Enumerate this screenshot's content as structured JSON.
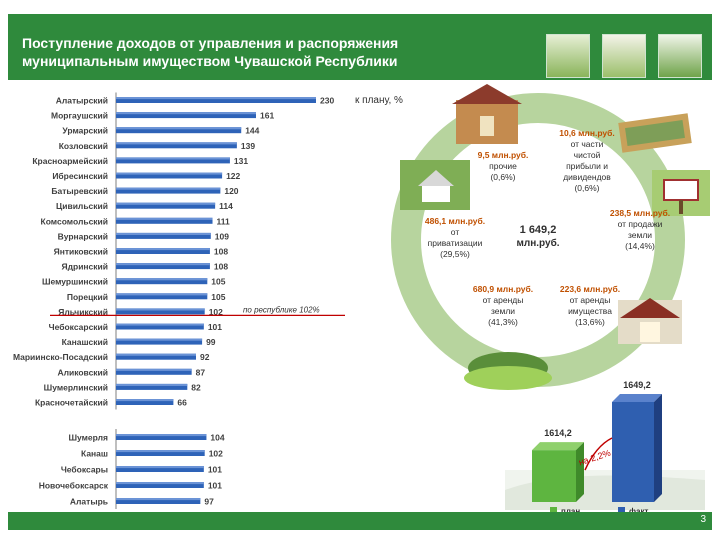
{
  "header": {
    "title": "Поступление доходов от управления и распоряжения муниципальным имуществом Чувашской Республики"
  },
  "page_number": "3",
  "colors": {
    "header": "#2f8a3c",
    "bar": "#2e63b8",
    "plan": "#5eb540",
    "fact": "#2f5fb0",
    "cycle": "#b7d49e"
  },
  "chart_data": [
    {
      "type": "bar",
      "orientation": "horizontal",
      "categories": [
        "Алатырский",
        "Моргаушский",
        "Урмарский",
        "Козловский",
        "Красноармейский",
        "Ибресинский",
        "Батыревский",
        "Цивильский",
        "Комсомольский",
        "Вурнарский",
        "Янтиковский",
        "Ядринский",
        "Шемуршинский",
        "Порецкий",
        "Яльчикский",
        "Чебоксарский",
        "Канашский",
        "Мариинско-Посадский",
        "Аликовский",
        "Шумерлинский",
        "Красночетайский"
      ],
      "values": [
        230,
        161,
        144,
        139,
        131,
        122,
        120,
        114,
        111,
        109,
        108,
        108,
        105,
        105,
        102,
        101,
        99,
        92,
        87,
        82,
        66
      ],
      "unit_label": "к плану, %",
      "reference_line": {
        "value": 102,
        "label": "по республике 102%"
      }
    },
    {
      "type": "bar",
      "orientation": "horizontal",
      "categories": [
        "Шумерля",
        "Канаш",
        "Чебоксары",
        "Новочебоксарск",
        "Алатырь"
      ],
      "values": [
        104,
        102,
        101,
        101,
        97
      ]
    },
    {
      "type": "bar",
      "categories": [
        "план",
        "факт"
      ],
      "values": [
        1614.2,
        1649.2
      ],
      "value_labels": [
        "1614,2",
        "1649,2"
      ],
      "annotation": "на 2,2%"
    }
  ],
  "cycle": {
    "center": "1 649,2 млн.руб.",
    "items": [
      {
        "value": "9,5 млн.руб.",
        "desc": "прочие",
        "share": "(0,6%)"
      },
      {
        "value": "10,6 млн.руб.",
        "desc": "от части чистой прибыли и дивидендов",
        "share": "(0,6%)"
      },
      {
        "value": "238,5 млн.руб.",
        "desc": "от продажи земли",
        "share": "(14,4%)"
      },
      {
        "value": "223,6 млн.руб.",
        "desc": "от аренды имущества",
        "share": "(13,6%)"
      },
      {
        "value": "680,9 млн.руб.",
        "desc": "от аренды земли",
        "share": "(41,3%)"
      },
      {
        "value": "486,1 млн.руб.",
        "desc": "от приватизации",
        "share": "(29,5%)"
      }
    ]
  }
}
